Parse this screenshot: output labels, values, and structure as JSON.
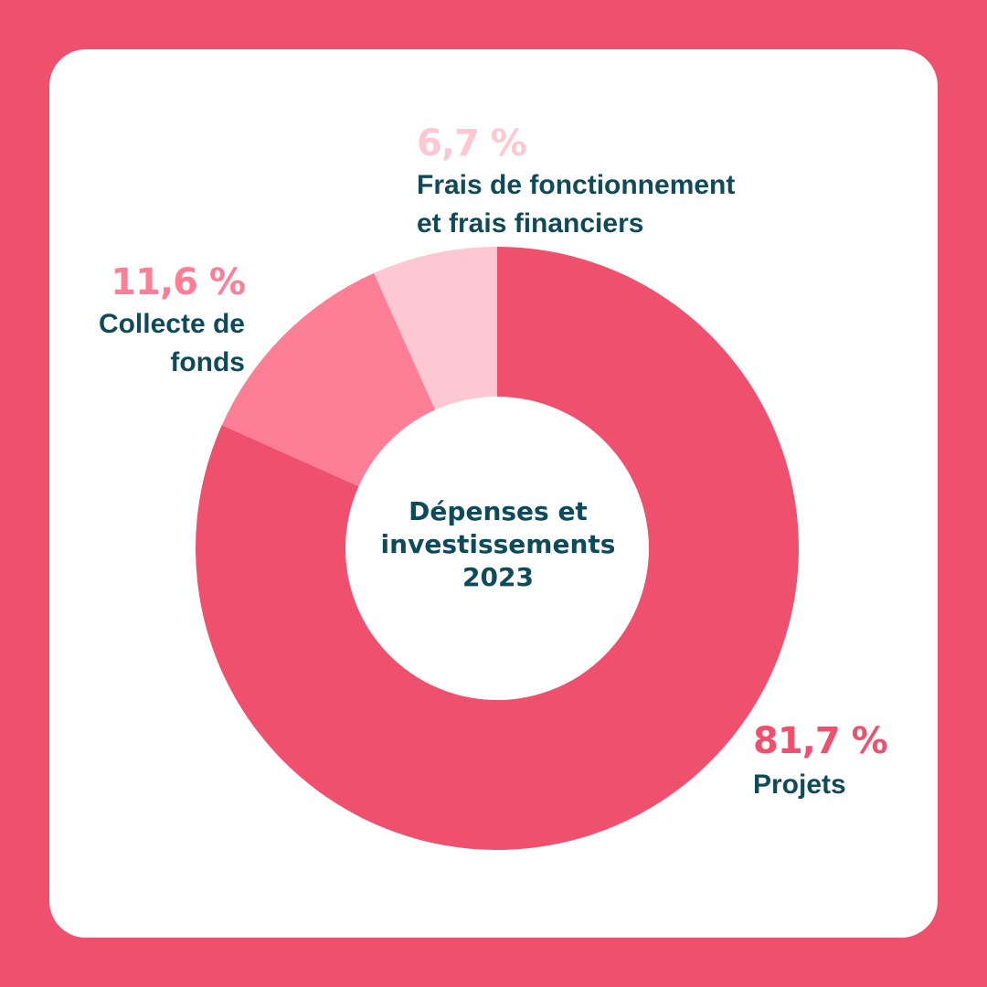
{
  "chart_data": {
    "type": "pie",
    "donut": true,
    "title": "Dépenses et investissements 2023",
    "title_lines": [
      "Dépenses et",
      "investissements",
      "2023"
    ],
    "unit": "%",
    "slices": [
      {
        "label": "Projets",
        "label_lines": [
          "Projets"
        ],
        "value": 81.7,
        "value_label": "81,7 %",
        "color": "#ef506d",
        "label_color": "#ef506d"
      },
      {
        "label": "Collecte de fonds",
        "label_lines": [
          "Collecte de",
          "fonds"
        ],
        "value": 11.6,
        "value_label": "11,6 %",
        "color": "#fe7f95",
        "label_color": "#fe7f95"
      },
      {
        "label": "Frais de fonctionnement et frais financiers",
        "label_lines": [
          "Frais de fonctionnement",
          "et frais financiers"
        ],
        "value": 6.7,
        "value_label": "6,7 %",
        "color": "#fec8d2",
        "label_color": "#fec8d2"
      }
    ],
    "start": "top",
    "direction": "clockwise"
  },
  "colors": {
    "background": "#ef506d",
    "card": "#ffffff",
    "text_dark": "#0e4a5a"
  }
}
